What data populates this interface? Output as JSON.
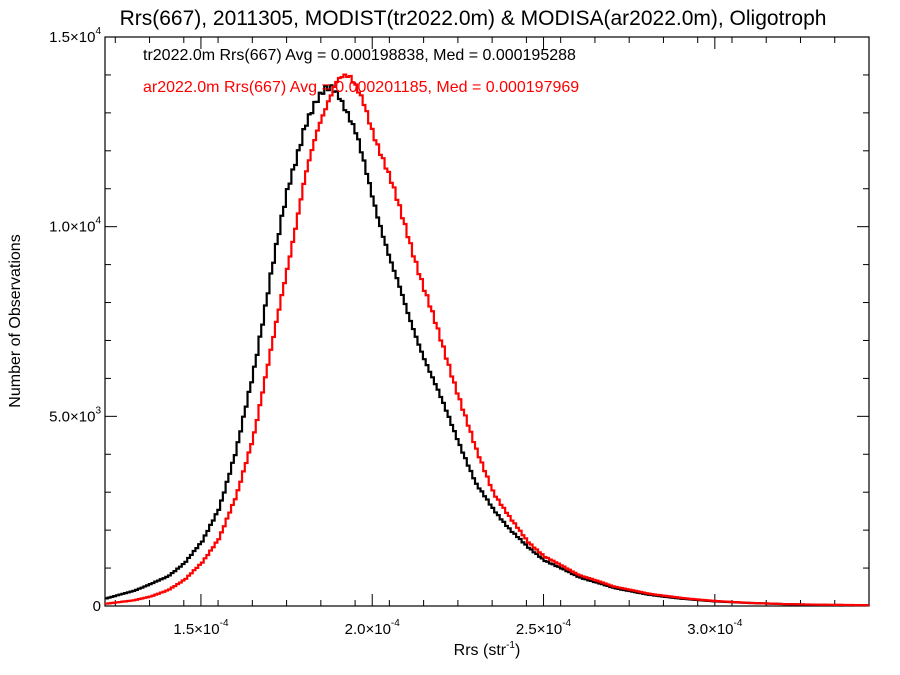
{
  "chart_data": {
    "type": "line",
    "title": "Rrs(667), 2011305, MODIST(tr2022.0m) & MODISA(ar2022.0m), Oligotroph",
    "xlabel": {
      "main": "Rrs (str",
      "sup": "-1",
      "end": ")"
    },
    "ylabel": "Number of Observations",
    "xlim": [
      0.000122,
      0.000345
    ],
    "ylim": [
      0,
      15000
    ],
    "x_ticks": [
      {
        "value": 0.00015,
        "mantissa": "1.5×10",
        "exp": "-4"
      },
      {
        "value": 0.0002,
        "mantissa": "2.0×10",
        "exp": "-4"
      },
      {
        "value": 0.00025,
        "mantissa": "2.5×10",
        "exp": "-4"
      },
      {
        "value": 0.0003,
        "mantissa": "3.0×10",
        "exp": "-4"
      }
    ],
    "y_ticks": [
      {
        "value": 0,
        "mantissa": "0",
        "exp": ""
      },
      {
        "value": 5000,
        "mantissa": "5.0×10",
        "exp": "3"
      },
      {
        "value": 10000,
        "mantissa": "1.0×10",
        "exp": "4"
      },
      {
        "value": 15000,
        "mantissa": "1.5×10",
        "exp": "4"
      }
    ],
    "grid": false,
    "series": [
      {
        "name": "tr2022.0m",
        "color": "#000000",
        "annotation": "tr2022.0m Rrs(667) Avg = 0.000198838, Med = 0.000195288",
        "x": [
          0.000122,
          0.00013,
          0.000135,
          0.00014,
          0.000145,
          0.00015,
          0.000155,
          0.00016,
          0.000165,
          0.00017,
          0.000175,
          0.00018,
          0.000183,
          0.000186,
          0.000188,
          0.00019,
          0.000192,
          0.000195,
          0.0002,
          0.000205,
          0.00021,
          0.000215,
          0.00022,
          0.000225,
          0.00023,
          0.000235,
          0.00024,
          0.000245,
          0.00025,
          0.00026,
          0.00027,
          0.00028,
          0.00029,
          0.0003,
          0.00031,
          0.00032,
          0.00033,
          0.000345
        ],
        "y": [
          200,
          400,
          580,
          780,
          1150,
          1700,
          2600,
          4100,
          6200,
          8700,
          11000,
          12700,
          13200,
          13600,
          13700,
          13500,
          13100,
          12400,
          10700,
          9100,
          7700,
          6500,
          5400,
          4300,
          3200,
          2550,
          2000,
          1550,
          1200,
          760,
          480,
          300,
          190,
          120,
          80,
          50,
          30,
          20
        ]
      },
      {
        "name": "ar2022.0m",
        "color": "#ff0000",
        "annotation": "ar2022.0m Rrs(667) Avg = 0.000201185, Med = 0.000197969",
        "x": [
          0.000122,
          0.00013,
          0.000135,
          0.00014,
          0.000145,
          0.00015,
          0.000155,
          0.00016,
          0.000165,
          0.00017,
          0.000175,
          0.00018,
          0.000184,
          0.000187,
          0.000189,
          0.000191,
          0.000193,
          0.000195,
          0.000197,
          0.0002,
          0.000205,
          0.00021,
          0.000215,
          0.00022,
          0.000225,
          0.00023,
          0.000235,
          0.00024,
          0.000245,
          0.00025,
          0.00026,
          0.00027,
          0.00028,
          0.00029,
          0.0003,
          0.00031,
          0.00032,
          0.00033,
          0.000345
        ],
        "y": [
          60,
          150,
          250,
          420,
          700,
          1150,
          1800,
          2900,
          4500,
          6700,
          9000,
          11300,
          12600,
          13400,
          13900,
          14000,
          13900,
          13600,
          13300,
          12500,
          11200,
          9800,
          8300,
          6900,
          5500,
          4100,
          3000,
          2300,
          1700,
          1300,
          820,
          520,
          330,
          210,
          130,
          80,
          50,
          35,
          20
        ]
      }
    ]
  }
}
